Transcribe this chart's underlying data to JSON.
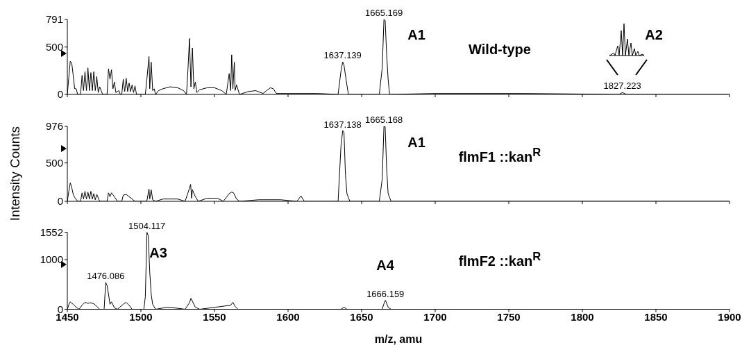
{
  "chart_data": [
    {
      "type": "line",
      "title": "Wild-type",
      "xlim": [
        1450,
        1900
      ],
      "xticks": [
        {
          "value": 1450,
          "label": null
        },
        {
          "value": 1500,
          "label": null
        },
        {
          "value": 1550,
          "label": null
        },
        {
          "value": 1600,
          "label": null
        },
        {
          "value": 1650,
          "label": null
        },
        {
          "value": 1700,
          "label": null
        },
        {
          "value": 1750,
          "label": null
        },
        {
          "value": 1800,
          "label": null
        },
        {
          "value": 1850,
          "label": null
        },
        {
          "value": 1900,
          "label": null
        }
      ],
      "ylim": [
        0,
        791
      ],
      "yticks": [
        0,
        500,
        791
      ],
      "tick_labels": "y",
      "series": [
        {
          "color": "#000000",
          "x": [
            1450,
            1451,
            1452,
            1453,
            1454,
            1455,
            1456,
            1457,
            1459,
            1460,
            1461,
            1462,
            1463,
            1464,
            1465,
            1466,
            1467,
            1468,
            1469,
            1470,
            1471,
            1472,
            1474,
            1477,
            1478,
            1479,
            1480,
            1481,
            1482,
            1483,
            1485,
            1486,
            1487,
            1488,
            1489,
            1490,
            1491,
            1492,
            1493,
            1494,
            1495,
            1496,
            1497,
            1503,
            1504,
            1505.5,
            1506,
            1507,
            1508,
            1509,
            1510,
            1512,
            1515,
            1520,
            1525,
            1529,
            1531,
            1532,
            1533,
            1534,
            1535,
            1536,
            1537,
            1538,
            1540,
            1545,
            1550,
            1555,
            1558,
            1560,
            1561,
            1561.7,
            1562.5,
            1563.5,
            1564,
            1565,
            1567,
            1573,
            1578,
            1583,
            1588,
            1590,
            1592,
            1600,
            1620,
            1634,
            1636,
            1637.139,
            1638,
            1639.5,
            1641,
            1662,
            1664,
            1665.169,
            1666,
            1667,
            1668,
            1669,
            1700,
            1760,
            1825,
            1827.223,
            1830,
            1900
          ],
          "values": [
            0,
            180,
            350,
            330,
            200,
            60,
            60,
            0,
            0,
            200,
            40,
            240,
            40,
            280,
            40,
            230,
            40,
            240,
            40,
            190,
            20,
            80,
            0,
            0,
            270,
            160,
            260,
            60,
            130,
            20,
            40,
            0,
            0,
            160,
            30,
            170,
            30,
            120,
            30,
            100,
            20,
            90,
            0,
            0,
            150,
            400,
            60,
            340,
            40,
            60,
            0,
            40,
            60,
            80,
            70,
            40,
            0,
            270,
            590,
            80,
            490,
            60,
            130,
            20,
            50,
            70,
            70,
            40,
            0,
            220,
            40,
            418,
            60,
            340,
            40,
            100,
            0,
            30,
            40,
            10,
            70,
            60,
            10,
            10,
            10,
            0,
            250,
            342,
            310,
            150,
            0,
            0,
            280,
            791,
            780,
            420,
            160,
            0,
            10,
            10,
            0,
            20,
            0,
            0
          ]
        }
      ],
      "annotations": [
        {
          "text": "1637.139",
          "x": 1637.139,
          "y": 342
        },
        {
          "text": "1665.169",
          "x": 1665.169,
          "y": 791
        },
        {
          "text": "1827.223",
          "x": 1827.223,
          "y": 20
        },
        "A1",
        "A2"
      ]
    },
    {
      "type": "line",
      "title": "flmF1 ::kan$^{R}$",
      "ylabel": "Intensity Counts",
      "xlim": [
        1450,
        1900
      ],
      "xticks": [
        {
          "value": 1450,
          "label": null
        },
        {
          "value": 1500,
          "label": null
        },
        {
          "value": 1550,
          "label": null
        },
        {
          "value": 1600,
          "label": null
        },
        {
          "value": 1650,
          "label": null
        },
        {
          "value": 1700,
          "label": null
        },
        {
          "value": 1750,
          "label": null
        },
        {
          "value": 1800,
          "label": null
        },
        {
          "value": 1850,
          "label": null
        },
        {
          "value": 1900,
          "label": null
        }
      ],
      "ylim": [
        0,
        976
      ],
      "yticks": [
        0,
        500,
        976
      ],
      "tick_labels": "y",
      "series": [
        {
          "color": "#000000",
          "x": [
            1450,
            1451,
            1452,
            1453,
            1454,
            1455,
            1457,
            1459,
            1460,
            1461,
            1462,
            1463,
            1464,
            1465,
            1466,
            1467,
            1468,
            1469,
            1470,
            1472,
            1477,
            1478,
            1479,
            1480,
            1482,
            1484,
            1487,
            1488,
            1490,
            1492,
            1494,
            1496,
            1504,
            1505.5,
            1506,
            1507,
            1508,
            1510,
            1515,
            1520,
            1525,
            1530,
            1532,
            1533.8,
            1534.5,
            1535,
            1537,
            1539,
            1545,
            1552,
            1556,
            1560,
            1561.7,
            1563,
            1565,
            1567,
            1580,
            1595,
            1606,
            1608.8,
            1611,
            1634,
            1636,
            1637.138,
            1638,
            1639,
            1640,
            1642,
            1662,
            1664,
            1665.168,
            1666,
            1667,
            1668,
            1670,
            1900
          ],
          "values": [
            0,
            130,
            240,
            180,
            90,
            50,
            0,
            0,
            110,
            30,
            130,
            30,
            120,
            30,
            130,
            30,
            100,
            20,
            90,
            0,
            0,
            110,
            60,
            110,
            60,
            0,
            0,
            80,
            90,
            60,
            30,
            0,
            0,
            160,
            30,
            150,
            20,
            0,
            30,
            30,
            30,
            0,
            110,
            220,
            40,
            150,
            60,
            0,
            40,
            40,
            0,
            100,
            120,
            110,
            30,
            0,
            20,
            20,
            0,
            70,
            0,
            0,
            730,
            920,
            900,
            350,
            100,
            0,
            0,
            290,
            976,
            970,
            430,
            100,
            0,
            0
          ]
        }
      ],
      "annotations": [
        {
          "text": "1637.138",
          "x": 1637.138,
          "y": 917
        },
        {
          "text": "1665.168",
          "x": 1665.168,
          "y": 976
        },
        "A1"
      ]
    },
    {
      "type": "line",
      "title": "flmF2 ::kan$^{R}$",
      "xlabel": "m/z, amu",
      "xlim": [
        1450,
        1900
      ],
      "xticks": [
        1450,
        1500,
        1550,
        1600,
        1650,
        1700,
        1750,
        1800,
        1850,
        1900
      ],
      "ylim": [
        0,
        1552
      ],
      "yticks": [
        0,
        1000,
        1552
      ],
      "series": [
        {
          "color": "#000000",
          "x": [
            1450,
            1451,
            1452,
            1453,
            1454,
            1456,
            1458,
            1460,
            1462,
            1464,
            1466,
            1468,
            1470,
            1472,
            1475,
            1476.086,
            1477,
            1478,
            1479,
            1480,
            1482,
            1484,
            1488,
            1490,
            1492,
            1494,
            1502,
            1503,
            1504.117,
            1505,
            1506,
            1507,
            1508,
            1510,
            1518,
            1525,
            1530,
            1533,
            1534,
            1535,
            1537,
            1540,
            1561,
            1562.5,
            1564,
            1566,
            1636,
            1638,
            1640,
            1664,
            1665,
            1666.159,
            1667,
            1668,
            1670,
            1900
          ],
          "values": [
            0,
            90,
            150,
            120,
            100,
            40,
            0,
            80,
            140,
            120,
            130,
            110,
            60,
            0,
            0,
            540,
            480,
            300,
            100,
            150,
            30,
            0,
            100,
            140,
            80,
            0,
            0,
            250,
            1552,
            1480,
            750,
            300,
            100,
            0,
            40,
            20,
            0,
            130,
            220,
            160,
            40,
            0,
            80,
            140,
            60,
            0,
            0,
            40,
            0,
            0,
            100,
            180,
            120,
            40,
            0,
            0
          ]
        }
      ],
      "annotations": [
        {
          "text": "1476.086",
          "x": 1476.086,
          "y": 540
        },
        {
          "text": "1504.117",
          "x": 1504.117,
          "y": 1552
        },
        {
          "text": "1666.159",
          "x": 1666.159,
          "y": 180
        },
        "A3",
        "A4"
      ]
    }
  ]
}
